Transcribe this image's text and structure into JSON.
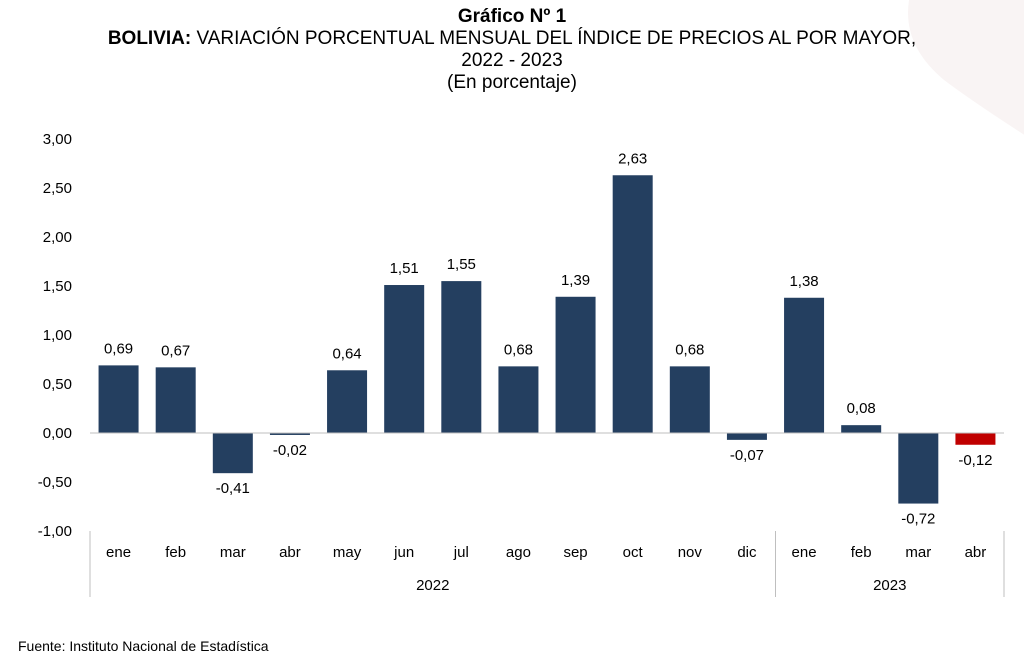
{
  "header": {
    "title": "Gráfico Nº 1",
    "subtitle_bold": "BOLIVIA:",
    "subtitle_rest": " VARIACIÓN PORCENTUAL MENSUAL DEL ÍNDICE DE PRECIOS AL POR MAYOR,",
    "subtitle_line2": "2022 - 2023",
    "unit": "(En porcentaje)"
  },
  "source": "Fuente: Instituto Nacional de Estadística",
  "colors": {
    "bar": "#243f60",
    "highlight": "#c00000",
    "axis": "#bfbfbf"
  },
  "chart_data": {
    "type": "bar",
    "title": "Gráfico Nº 1",
    "ylim": [
      -1.0,
      3.0
    ],
    "yticks": [
      "-1,00",
      "-0,50",
      "0,00",
      "0,50",
      "1,00",
      "1,50",
      "2,00",
      "2,50",
      "3,00"
    ],
    "categories": [
      "ene",
      "feb",
      "mar",
      "abr",
      "may",
      "jun",
      "jul",
      "ago",
      "sep",
      "oct",
      "nov",
      "dic",
      "ene",
      "feb",
      "mar",
      "abr"
    ],
    "values": [
      0.69,
      0.67,
      -0.41,
      -0.02,
      0.64,
      1.51,
      1.55,
      0.68,
      1.39,
      2.63,
      0.68,
      -0.07,
      1.38,
      0.08,
      -0.72,
      -0.12
    ],
    "labels": [
      "0,69",
      "0,67",
      "-0,41",
      "-0,02",
      "0,64",
      "1,51",
      "1,55",
      "0,68",
      "1,39",
      "2,63",
      "0,68",
      "-0,07",
      "1,38",
      "0,08",
      "-0,72",
      "-0,12"
    ],
    "groups": [
      {
        "label": "2022",
        "count": 12
      },
      {
        "label": "2023",
        "count": 4
      }
    ],
    "highlight_index": 15,
    "grid": false,
    "legend": "none"
  }
}
